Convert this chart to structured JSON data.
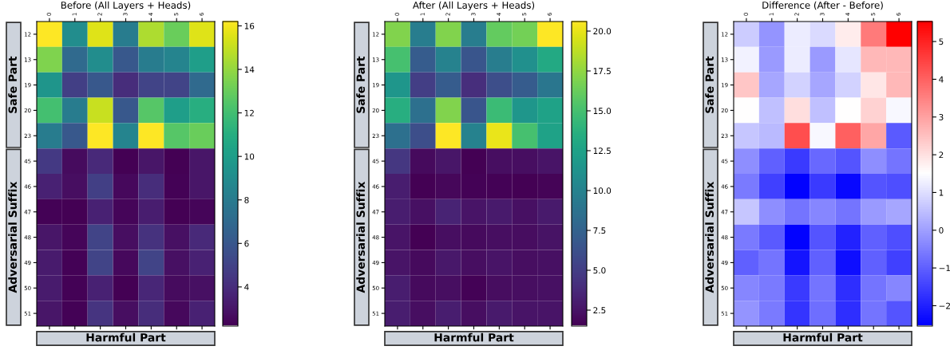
{
  "chart_data": [
    {
      "type": "heatmap",
      "title": "Before (All Layers + Heads)",
      "xlabel": "Harmful Part",
      "categories": [
        "0",
        "1",
        "2",
        "3",
        "4",
        "5",
        "6"
      ],
      "y_categories": [
        "12",
        "13",
        "19",
        "20",
        "23",
        "45",
        "46",
        "47",
        "48",
        "49",
        "50",
        "51"
      ],
      "cells": [
        [
          16.2,
          9,
          15.5,
          8,
          14.5,
          13,
          15.5
        ],
        [
          13.5,
          7,
          9,
          6,
          8,
          8.5,
          10
        ],
        [
          9.5,
          4.8,
          6,
          4,
          5,
          5,
          7
        ],
        [
          12,
          8,
          15,
          6,
          12.5,
          10,
          11
        ],
        [
          8,
          6,
          16.2,
          8.5,
          16.2,
          12.5,
          13
        ],
        [
          4.5,
          2.6,
          3.8,
          2.2,
          3,
          2.2,
          3
        ],
        [
          3.5,
          2.7,
          4.8,
          2.5,
          4,
          2.3,
          3
        ],
        [
          2.3,
          2.2,
          3.5,
          2.4,
          3.3,
          2.2,
          2.4
        ],
        [
          3,
          2.4,
          5,
          2.7,
          4.2,
          2.8,
          3.8
        ],
        [
          3.2,
          2.3,
          5,
          2.5,
          5,
          2.8,
          3.5
        ],
        [
          3.2,
          2.3,
          3.5,
          2.2,
          3.7,
          2.6,
          2.8
        ],
        [
          3,
          2.3,
          4.3,
          2.7,
          4,
          2.5,
          3.5
        ]
      ],
      "clim": [
        2.2,
        16.2
      ],
      "cticks": [
        4,
        6,
        8,
        10,
        12,
        14,
        16
      ],
      "annotations": [
        "Safe Part",
        "Adversarial Suffix"
      ]
    },
    {
      "type": "heatmap",
      "title": "After (All Layers + Heads)",
      "xlabel": "Harmful Part",
      "categories": [
        "0",
        "1",
        "2",
        "3",
        "4",
        "5",
        "6"
      ],
      "y_categories": [
        "12",
        "13",
        "19",
        "20",
        "23",
        "45",
        "46",
        "47",
        "48",
        "49",
        "50",
        "51"
      ],
      "cells": [
        [
          17,
          9.5,
          17,
          9.5,
          16,
          16.5,
          20.6
        ],
        [
          15,
          7,
          10,
          6.5,
          9.5,
          11,
          13
        ],
        [
          11.5,
          5,
          7,
          4,
          6,
          7,
          9
        ],
        [
          13.5,
          8.5,
          17,
          6.5,
          14.5,
          11.5,
          12.5
        ],
        [
          8.5,
          6,
          20.6,
          10,
          20,
          15,
          12.5
        ],
        [
          4.5,
          2,
          2.6,
          1.5,
          2.2,
          2.2,
          2.5
        ],
        [
          3,
          1.5,
          1.8,
          1.6,
          1.6,
          1.5,
          1.7
        ],
        [
          3,
          2.3,
          3.3,
          2.5,
          2.8,
          2.3,
          2.8
        ],
        [
          2.5,
          1.5,
          2.2,
          2,
          2.2,
          2.1,
          2.4
        ],
        [
          2.5,
          2,
          2.7,
          2.2,
          2.5,
          2.2,
          2.3
        ],
        [
          3,
          2,
          2.2,
          1.6,
          2.1,
          2.2,
          2.3
        ],
        [
          3,
          2.2,
          3,
          2.2,
          2.8,
          2.5,
          2.5
        ]
      ],
      "clim": [
        1.5,
        20.6
      ],
      "cticks": [
        {
          "value": 2.5,
          "label": "2.5"
        },
        {
          "value": 5,
          "label": "5.0"
        },
        {
          "value": 7.5,
          "label": "7.5"
        },
        {
          "value": 10,
          "label": "10.0"
        },
        {
          "value": 12.5,
          "label": "12.5"
        },
        {
          "value": 15,
          "label": "15.0"
        },
        {
          "value": 17.5,
          "label": "17.5"
        },
        {
          "value": 20,
          "label": "20.0"
        }
      ],
      "annotations": [
        "Safe Part",
        "Adversarial Suffix"
      ]
    },
    {
      "type": "heatmap",
      "title": "Difference (After - Before)",
      "xlabel": "Harmful Part",
      "categories": [
        "0",
        "1",
        "2",
        "3",
        "4",
        "5",
        "6"
      ],
      "y_categories": [
        "12",
        "13",
        "19",
        "20",
        "23",
        "45",
        "46",
        "47",
        "48",
        "49",
        "50",
        "51"
      ],
      "cells": [
        [
          0.7,
          -0.2,
          1.2,
          0.9,
          1.8,
          3.6,
          5.5
        ],
        [
          1.3,
          -0.1,
          1.2,
          -0.1,
          1.1,
          2.6,
          2.6
        ],
        [
          2.4,
          0.1,
          0.8,
          0.1,
          0.8,
          1.9,
          2.6
        ],
        [
          1.5,
          0.5,
          2.0,
          0.5,
          1.5,
          2.2,
          1.4
        ],
        [
          0.6,
          0.4,
          4.3,
          1.4,
          4.0,
          2.9,
          -1.1
        ],
        [
          -0.3,
          -1.0,
          -1.6,
          -0.9,
          -1.2,
          -0.3,
          -0.7
        ],
        [
          -0.6,
          -1.5,
          -2.5,
          -1.6,
          -2.4,
          -1.2,
          -1.3
        ],
        [
          0.6,
          -0.3,
          -0.7,
          -0.4,
          -0.7,
          -0.1,
          0.1
        ],
        [
          -0.6,
          -1.1,
          -2.5,
          -1.2,
          -2.0,
          -1.0,
          -1.3
        ],
        [
          -1.0,
          -0.7,
          -2.2,
          -1.0,
          -2.3,
          -1.0,
          -1.5
        ],
        [
          -0.4,
          -0.6,
          -1.6,
          -0.7,
          -1.8,
          -0.7,
          -0.4
        ],
        [
          -0.2,
          -0.6,
          -1.7,
          -0.8,
          -1.8,
          -0.7,
          -1.2
        ]
      ],
      "clim": [
        -2.54,
        5.53
      ],
      "cticks": [
        {
          "value": -2,
          "label": "−2"
        },
        {
          "value": -1,
          "label": "−1"
        },
        0,
        1,
        2,
        3,
        4,
        5
      ],
      "annotations": [
        "Safe Part",
        "Adversarial Suffix"
      ]
    }
  ]
}
